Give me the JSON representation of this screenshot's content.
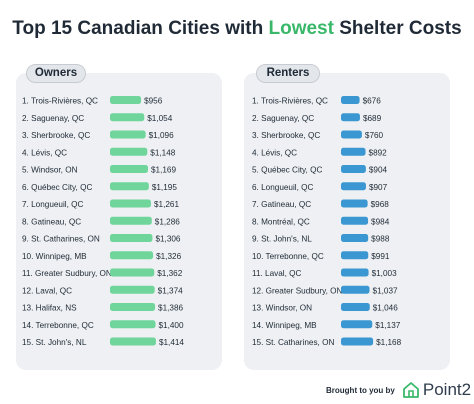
{
  "title": {
    "prefix": "Top 15 Canadian Cities with ",
    "highlight": "Lowest",
    "suffix": " Shelter Costs"
  },
  "colors": {
    "owners_bar": "#6fd59b",
    "renters_bar": "#3a97d1",
    "highlight": "#39b86a",
    "panel_bg": "#eef0f3"
  },
  "footer": {
    "brought_by": "Brought to you by",
    "logo_text": "Point2",
    "logo_icon": "house-outline-icon"
  },
  "chart_data": [
    {
      "type": "bar",
      "orientation": "horizontal",
      "title": "Owners",
      "categories": [
        "1. Trois-Rivières, QC",
        "2. Saguenay, QC",
        "3. Sherbrooke, QC",
        "4. Lévis, QC",
        "5. Windsor, ON",
        "6. Québec City, QC",
        "7. Longueuil, QC",
        "8. Gatineau, QC",
        "9. St. Catharines, ON",
        "10. Winnipeg, MB",
        "11. Greater Sudbury, ON",
        "12. Laval, QC",
        "13. Halifax, NS",
        "14. Terrebonne, QC",
        "15. St. John's, NL"
      ],
      "values": [
        956,
        1054,
        1096,
        1148,
        1169,
        1195,
        1261,
        1286,
        1306,
        1326,
        1362,
        1374,
        1386,
        1400,
        1414
      ],
      "labels": [
        "$956",
        "$1,054",
        "$1,096",
        "$1,148",
        "$1,169",
        "$1,195",
        "$1,261",
        "$1,286",
        "$1,306",
        "$1,326",
        "$1,362",
        "$1,374",
        "$1,386",
        "$1,400",
        "$1,414"
      ]
    },
    {
      "type": "bar",
      "orientation": "horizontal",
      "title": "Renters",
      "categories": [
        "1. Trois-Rivières, QC",
        "2. Saguenay, QC",
        "3. Sherbrooke, QC",
        "4. Lévis, QC",
        "5. Québec City, QC",
        "6. Longueuil, QC",
        "7. Gatineau, QC",
        "8. Montréal, QC",
        "9. St. John's, NL",
        "10. Terrebonne, QC",
        "11. Laval, QC",
        "12. Greater Sudbury, ON",
        "13. Windsor, ON",
        "14. Winnipeg, MB",
        "15. St. Catharines, ON"
      ],
      "values": [
        676,
        689,
        760,
        892,
        904,
        907,
        968,
        984,
        988,
        991,
        1003,
        1037,
        1046,
        1137,
        1168
      ],
      "labels": [
        "$676",
        "$689",
        "$760",
        "$892",
        "$904",
        "$907",
        "$968",
        "$984",
        "$988",
        "$991",
        "$1,003",
        "$1,037",
        "$1,046",
        "$1,137",
        "$1,168"
      ]
    }
  ]
}
